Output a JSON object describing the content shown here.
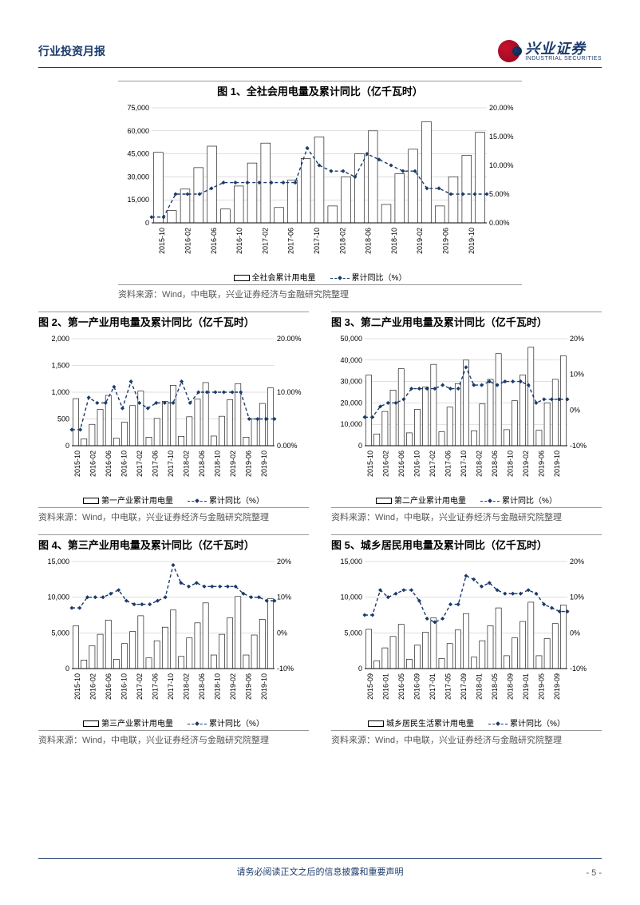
{
  "header": {
    "title": "行业投资月报"
  },
  "logo": {
    "cn": "兴业证券",
    "en": "INDUSTRIAL SECURITIES"
  },
  "footer": {
    "disclaimer": "请务必阅读正文之后的信息披露和重要声明",
    "page": "- 5 -"
  },
  "source_text": "资料来源：Wind，中电联，兴业证券经济与金融研究院整理",
  "charts": {
    "c1": {
      "title": "图 1、全社会用电量及累计同比（亿千瓦时）",
      "type": "bar+line",
      "x_labels": [
        "2015-10",
        "2016-02",
        "2016-06",
        "2016-10",
        "2017-02",
        "2017-06",
        "2017-10",
        "2018-02",
        "2018-06",
        "2018-10",
        "2019-02",
        "2019-06",
        "2019-10"
      ],
      "y1_ticks": [
        0,
        15000,
        30000,
        45000,
        60000,
        75000
      ],
      "y1_max": 75000,
      "y2_ticks": [
        "0.00%",
        "5.00%",
        "10.00%",
        "15.00%",
        "20.00%"
      ],
      "y2_max": 20,
      "bars": [
        46000,
        8000,
        22000,
        36000,
        50000,
        9000,
        24000,
        39000,
        52000,
        10000,
        28000,
        42000,
        56000,
        11000,
        30000,
        45000,
        60000,
        12000,
        32000,
        48000,
        66000,
        11000,
        30000,
        44000,
        59000
      ],
      "line": [
        1,
        1,
        5,
        5,
        5,
        6,
        7,
        7,
        7,
        7,
        7,
        7,
        7,
        13,
        10,
        9,
        9,
        8,
        12,
        11,
        10,
        9,
        9,
        6,
        6,
        5,
        5,
        5,
        5
      ],
      "legend_bar": "全社会累计用电量",
      "legend_line": "累计同比（%）",
      "bar_color": "#ffffff",
      "bar_stroke": "#000000",
      "line_color": "#1a3a6b",
      "grid_color": "#bfbfbf"
    },
    "c2": {
      "title": "图 2、第一产业用电量及累计同比（亿千瓦时）",
      "type": "bar+line",
      "x_labels": [
        "2015-10",
        "2016-02",
        "2016-06",
        "2016-10",
        "2017-02",
        "2017-06",
        "2017-10",
        "2018-02",
        "2018-06",
        "2018-10",
        "2019-02",
        "2019-06",
        "2019-10"
      ],
      "y1_ticks": [
        0,
        500,
        1000,
        1500,
        2000
      ],
      "y1_max": 2000,
      "y2_ticks": [
        "0.00%",
        "10.00%",
        "20.00%"
      ],
      "y2_max": 20,
      "bars": [
        880,
        130,
        400,
        680,
        940,
        140,
        440,
        750,
        1020,
        160,
        510,
        830,
        1130,
        175,
        540,
        870,
        1180,
        180,
        550,
        860,
        1160,
        160,
        500,
        790,
        1080
      ],
      "line": [
        3,
        3,
        9,
        8,
        8,
        11,
        7,
        12,
        8,
        7,
        8,
        8,
        8,
        12,
        8,
        10,
        10,
        10,
        10,
        10,
        10,
        5,
        5,
        5,
        5
      ],
      "legend_bar": "第一产业累计用电量",
      "legend_line": "累计同比（%）"
    },
    "c3": {
      "title": "图 3、第二产业用电量及累计同比（亿千瓦时）",
      "type": "bar+line",
      "x_labels": [
        "2015-10",
        "2016-02",
        "2016-06",
        "2016-10",
        "2017-02",
        "2017-06",
        "2017-10",
        "2018-02",
        "2018-06",
        "2018-10",
        "2019-02",
        "2019-06",
        "2019-10"
      ],
      "y1_ticks": [
        0,
        10000,
        20000,
        30000,
        40000,
        50000
      ],
      "y1_max": 50000,
      "y2_ticks": [
        "-10%",
        "0%",
        "10%",
        "20%"
      ],
      "y2_min": -10,
      "y2_max": 20,
      "bars": [
        33000,
        5500,
        16000,
        26000,
        36000,
        6000,
        17000,
        27500,
        38000,
        6500,
        18000,
        29000,
        40000,
        7000,
        19500,
        31000,
        43000,
        7500,
        21000,
        33000,
        46000,
        7200,
        20000,
        31000,
        42000
      ],
      "line": [
        -2,
        -2,
        1,
        2,
        2,
        3,
        6,
        6,
        6,
        6,
        7,
        6,
        6,
        12,
        7,
        7,
        8,
        7,
        8,
        8,
        8,
        7,
        2,
        3,
        3,
        3,
        3
      ],
      "legend_bar": "第二产业累计用电量",
      "legend_line": "累计同比（%）"
    },
    "c4": {
      "title": "图 4、第三产业用电量及累计同比（亿千瓦时）",
      "type": "bar+line",
      "x_labels": [
        "2015-10",
        "2016-02",
        "2016-06",
        "2016-10",
        "2017-02",
        "2017-06",
        "2017-10",
        "2018-02",
        "2018-06",
        "2018-10",
        "2019-02",
        "2019-06",
        "2019-10"
      ],
      "y1_ticks": [
        0,
        5000,
        10000,
        15000
      ],
      "y1_max": 15000,
      "y2_ticks": [
        "-10%",
        "0%",
        "10%",
        "20%"
      ],
      "y2_min": -10,
      "y2_max": 20,
      "bars": [
        6000,
        1200,
        3200,
        4800,
        6800,
        1300,
        3500,
        5200,
        7400,
        1500,
        3900,
        5800,
        8200,
        1700,
        4300,
        6400,
        9200,
        1900,
        4800,
        7100,
        10100,
        1900,
        4700,
        6900,
        9800
      ],
      "line": [
        7,
        7,
        10,
        10,
        10,
        11,
        12,
        9,
        8,
        8,
        8,
        9,
        10,
        19,
        14,
        13,
        14,
        13,
        13,
        13,
        13,
        13,
        11,
        10,
        10,
        9,
        9
      ],
      "legend_bar": "第三产业累计用电量",
      "legend_line": "累计同比（%）"
    },
    "c5": {
      "title": "图 5、城乡居民用电量及累计同比（亿千瓦时）",
      "type": "bar+line",
      "x_labels": [
        "2015-09",
        "2016-01",
        "2016-05",
        "2016-09",
        "2017-01",
        "2017-05",
        "2017-09",
        "2018-01",
        "2018-05",
        "2018-09",
        "2019-01",
        "2019-05",
        "2019-09"
      ],
      "y1_ticks": [
        0,
        5000,
        10000,
        15000
      ],
      "y1_max": 15000,
      "y2_ticks": [
        "-10%",
        "0%",
        "10%",
        "20%"
      ],
      "y2_min": -10,
      "y2_max": 20,
      "bars": [
        5500,
        1100,
        2900,
        4500,
        6200,
        1300,
        3300,
        5100,
        7100,
        1400,
        3500,
        5400,
        7700,
        1600,
        3900,
        6000,
        8500,
        1800,
        4300,
        6600,
        9300,
        1800,
        4200,
        6300,
        8900
      ],
      "line": [
        5,
        5,
        12,
        10,
        11,
        12,
        12,
        9,
        4,
        3,
        4,
        8,
        8,
        16,
        15,
        13,
        14,
        12,
        11,
        11,
        11,
        12,
        11,
        8,
        7,
        6,
        6
      ],
      "legend_bar": "城乡居民生活累计用电量",
      "legend_line": "累计同比（%）"
    }
  }
}
